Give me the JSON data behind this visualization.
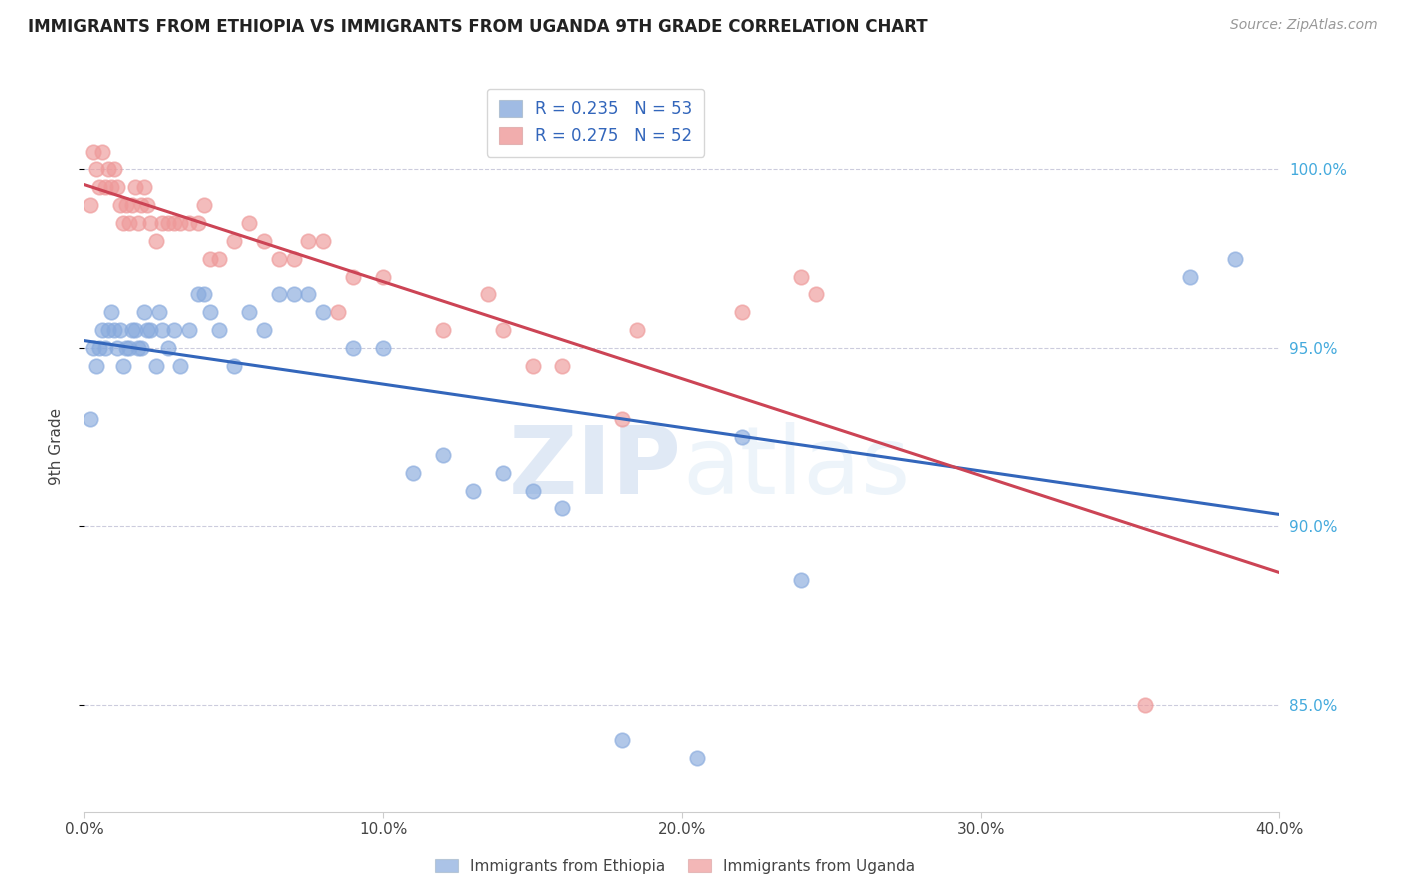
{
  "title": "IMMIGRANTS FROM ETHIOPIA VS IMMIGRANTS FROM UGANDA 9TH GRADE CORRELATION CHART",
  "source": "Source: ZipAtlas.com",
  "ylabel": "9th Grade",
  "xlim": [
    0.0,
    40.0
  ],
  "ylim": [
    82.0,
    102.5
  ],
  "yticks": [
    85.0,
    90.0,
    95.0,
    100.0
  ],
  "xticks": [
    0.0,
    10.0,
    20.0,
    30.0,
    40.0
  ],
  "legend_r1": "R = 0.235",
  "legend_n1": "N = 53",
  "legend_r2": "R = 0.275",
  "legend_n2": "N = 52",
  "watermark_zip": "ZIP",
  "watermark_atlas": "atlas",
  "ethiopia_color": "#88AADD",
  "uganda_color": "#EE9999",
  "ethiopia_line_color": "#3366BB",
  "uganda_line_color": "#CC4455",
  "ethiopia_x": [
    0.2,
    0.3,
    0.4,
    0.5,
    0.6,
    0.7,
    0.8,
    0.9,
    1.0,
    1.1,
    1.2,
    1.3,
    1.4,
    1.5,
    1.6,
    1.7,
    1.8,
    1.9,
    2.0,
    2.1,
    2.2,
    2.4,
    2.5,
    2.6,
    2.8,
    3.0,
    3.2,
    3.5,
    3.8,
    4.0,
    4.2,
    4.5,
    5.0,
    5.5,
    6.0,
    6.5,
    7.0,
    7.5,
    8.0,
    9.0,
    10.0,
    11.0,
    12.0,
    13.0,
    14.0,
    15.0,
    16.0,
    18.0,
    20.5,
    22.0,
    24.0,
    37.0,
    38.5
  ],
  "ethiopia_y": [
    93.0,
    95.0,
    94.5,
    95.0,
    95.5,
    95.0,
    95.5,
    96.0,
    95.5,
    95.0,
    95.5,
    94.5,
    95.0,
    95.0,
    95.5,
    95.5,
    95.0,
    95.0,
    96.0,
    95.5,
    95.5,
    94.5,
    96.0,
    95.5,
    95.0,
    95.5,
    94.5,
    95.5,
    96.5,
    96.5,
    96.0,
    95.5,
    94.5,
    96.0,
    95.5,
    96.5,
    96.5,
    96.5,
    96.0,
    95.0,
    95.0,
    91.5,
    92.0,
    91.0,
    91.5,
    91.0,
    90.5,
    84.0,
    83.5,
    92.5,
    88.5,
    97.0,
    97.5
  ],
  "uganda_x": [
    0.2,
    0.3,
    0.4,
    0.5,
    0.6,
    0.7,
    0.8,
    0.9,
    1.0,
    1.1,
    1.2,
    1.3,
    1.4,
    1.5,
    1.6,
    1.7,
    1.8,
    1.9,
    2.0,
    2.1,
    2.2,
    2.4,
    2.6,
    2.8,
    3.0,
    3.2,
    3.5,
    3.8,
    4.0,
    4.2,
    4.5,
    5.0,
    5.5,
    6.0,
    6.5,
    7.0,
    7.5,
    8.0,
    8.5,
    9.0,
    10.0,
    12.0,
    13.5,
    14.0,
    15.0,
    16.0,
    18.0,
    18.5,
    22.0,
    24.0,
    24.5,
    35.5
  ],
  "uganda_y": [
    99.0,
    100.5,
    100.0,
    99.5,
    100.5,
    99.5,
    100.0,
    99.5,
    100.0,
    99.5,
    99.0,
    98.5,
    99.0,
    98.5,
    99.0,
    99.5,
    98.5,
    99.0,
    99.5,
    99.0,
    98.5,
    98.0,
    98.5,
    98.5,
    98.5,
    98.5,
    98.5,
    98.5,
    99.0,
    97.5,
    97.5,
    98.0,
    98.5,
    98.0,
    97.5,
    97.5,
    98.0,
    98.0,
    96.0,
    97.0,
    97.0,
    95.5,
    96.5,
    95.5,
    94.5,
    94.5,
    93.0,
    95.5,
    96.0,
    97.0,
    96.5,
    85.0
  ]
}
